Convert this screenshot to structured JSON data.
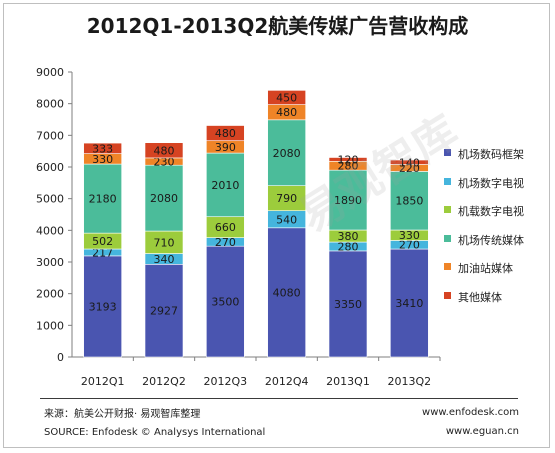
{
  "title": "2012Q1-2013Q2航美传媒广告营收构成",
  "chart_data": {
    "type": "bar",
    "stacked": true,
    "title": "2012Q1-2013Q2航美传媒广告营收构成",
    "categories": [
      "2012Q1",
      "2012Q2",
      "2012Q3",
      "2012Q4",
      "2013Q1",
      "2013Q2"
    ],
    "ylim": [
      0,
      9000
    ],
    "yticks": [
      0,
      1000,
      2000,
      3000,
      4000,
      5000,
      6000,
      7000,
      8000,
      9000
    ],
    "grid": false,
    "legend_position": "right",
    "series": [
      {
        "name": "机场数码框架",
        "color": "#4a55b0",
        "values": [
          3193,
          2927,
          3500,
          4080,
          3350,
          3410
        ]
      },
      {
        "name": "机场数字电视",
        "color": "#45b5dd",
        "values": [
          217,
          340,
          270,
          540,
          280,
          270
        ]
      },
      {
        "name": "机载数字电视",
        "color": "#9ccc3c",
        "values": [
          502,
          710,
          660,
          790,
          380,
          330
        ]
      },
      {
        "name": "机场传统媒体",
        "color": "#4bbc9a",
        "values": [
          2180,
          2080,
          2010,
          2080,
          1890,
          1850
        ]
      },
      {
        "name": "加油站媒体",
        "color": "#ef8427",
        "values": [
          330,
          230,
          390,
          480,
          280,
          220
        ]
      },
      {
        "name": "其他媒体",
        "color": "#d64322",
        "values": [
          333,
          480,
          480,
          450,
          120,
          140
        ]
      }
    ]
  },
  "footer": {
    "source_cn": "来源：航美公开财报· 易观智库整理",
    "source_en": "SOURCE: Enfodesk © Analysys International",
    "site1": "www.enfodesk.com",
    "site2": "www.eguan.cn"
  },
  "watermark": "易观智库"
}
